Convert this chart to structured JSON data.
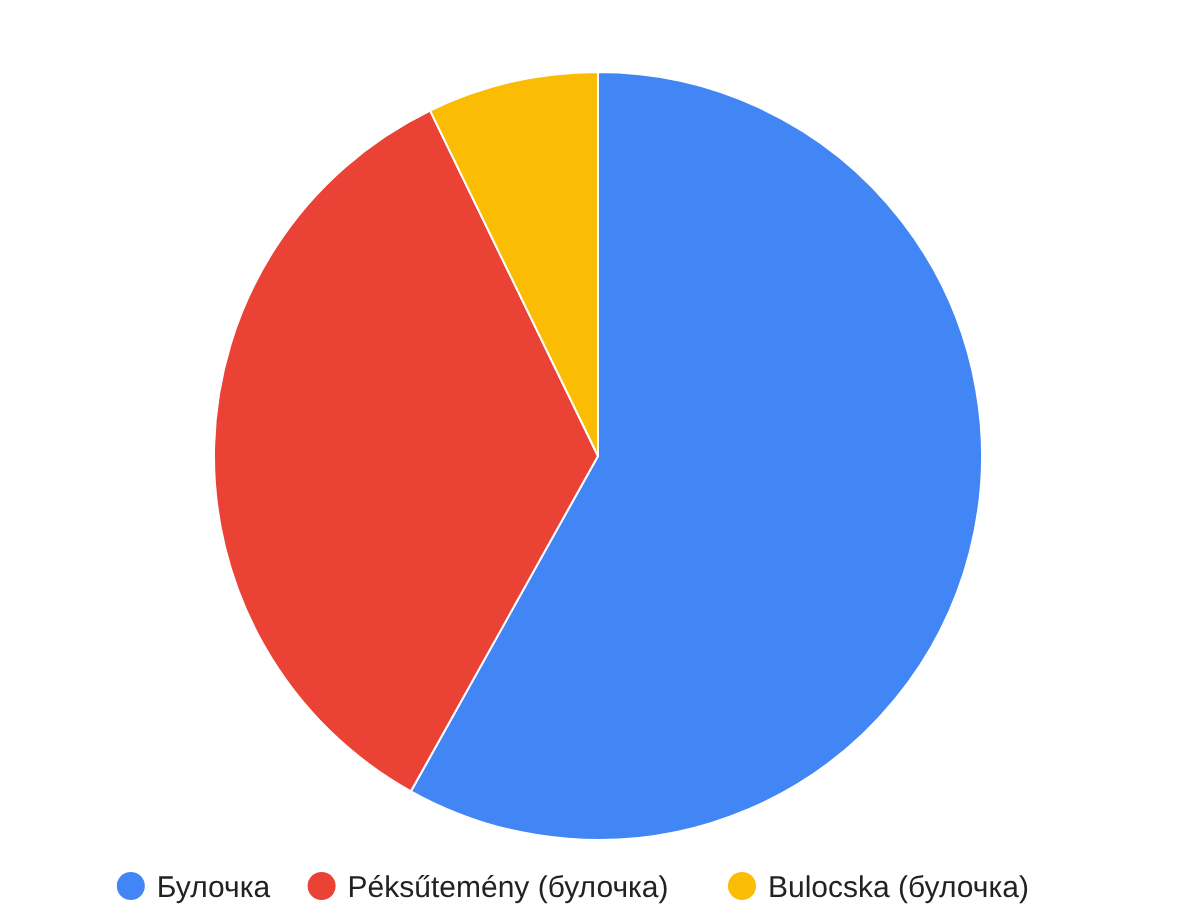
{
  "chart_data": {
    "type": "pie",
    "categories": [
      "Булочка",
      "Péksűtemény (булочка)",
      "Bulocska (булочка)"
    ],
    "values": [
      58.1,
      34.7,
      7.2
    ],
    "colors": [
      "#4285f4",
      "#ea4335",
      "#fbbc04"
    ],
    "legend": "bottom"
  }
}
